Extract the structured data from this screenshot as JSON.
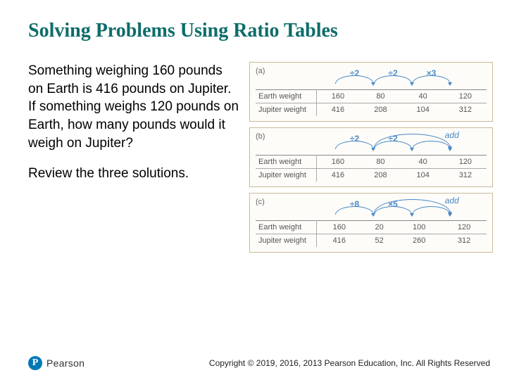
{
  "title": "Solving Problems Using Ratio Tables",
  "title_color": "#0d6d6a",
  "problem_text": "Something weighing 160 pounds on Earth is 416 pounds on Jupiter. If something weighs 120 pounds on Earth, how many pounds would it weigh on Jupiter?",
  "review_text": "Review the three solutions.",
  "body_color": "#000000",
  "row1_label": "Earth weight",
  "row2_label": "Jupiter weight",
  "op_color": "#4b89c8",
  "panel_border": "#c9b99a",
  "panel_bg": "#fdfcf8",
  "panels": [
    {
      "label": "(a)",
      "ops": [
        "÷2",
        "÷2",
        "×3"
      ],
      "add_label": "",
      "col_count": 4,
      "earth": [
        160,
        80,
        40,
        120
      ],
      "jupiter": [
        416,
        208,
        104,
        312
      ],
      "arc_spans": [
        [
          0,
          1
        ],
        [
          1,
          2
        ],
        [
          2,
          3
        ]
      ]
    },
    {
      "label": "(b)",
      "ops": [
        "÷2",
        "÷2",
        ""
      ],
      "add_label": "add",
      "col_count": 4,
      "earth": [
        160,
        80,
        40,
        120
      ],
      "jupiter": [
        416,
        208,
        104,
        312
      ],
      "arc_spans": [
        [
          0,
          1
        ],
        [
          1,
          2
        ],
        [
          1,
          3
        ],
        [
          2,
          3
        ]
      ]
    },
    {
      "label": "(c)",
      "ops": [
        "÷8",
        "×5",
        ""
      ],
      "add_label": "add",
      "col_count": 4,
      "earth": [
        160,
        20,
        100,
        120
      ],
      "jupiter": [
        416,
        52,
        260,
        312
      ],
      "arc_spans": [
        [
          0,
          1
        ],
        [
          1,
          2
        ],
        [
          1,
          3
        ],
        [
          2,
          3
        ]
      ]
    }
  ],
  "logo_text": "Pearson",
  "logo_p": "P",
  "logo_bg": "#0078b6",
  "copyright": "Copyright © 2019, 2016, 2013 Pearson Education, Inc. All Rights Reserved"
}
